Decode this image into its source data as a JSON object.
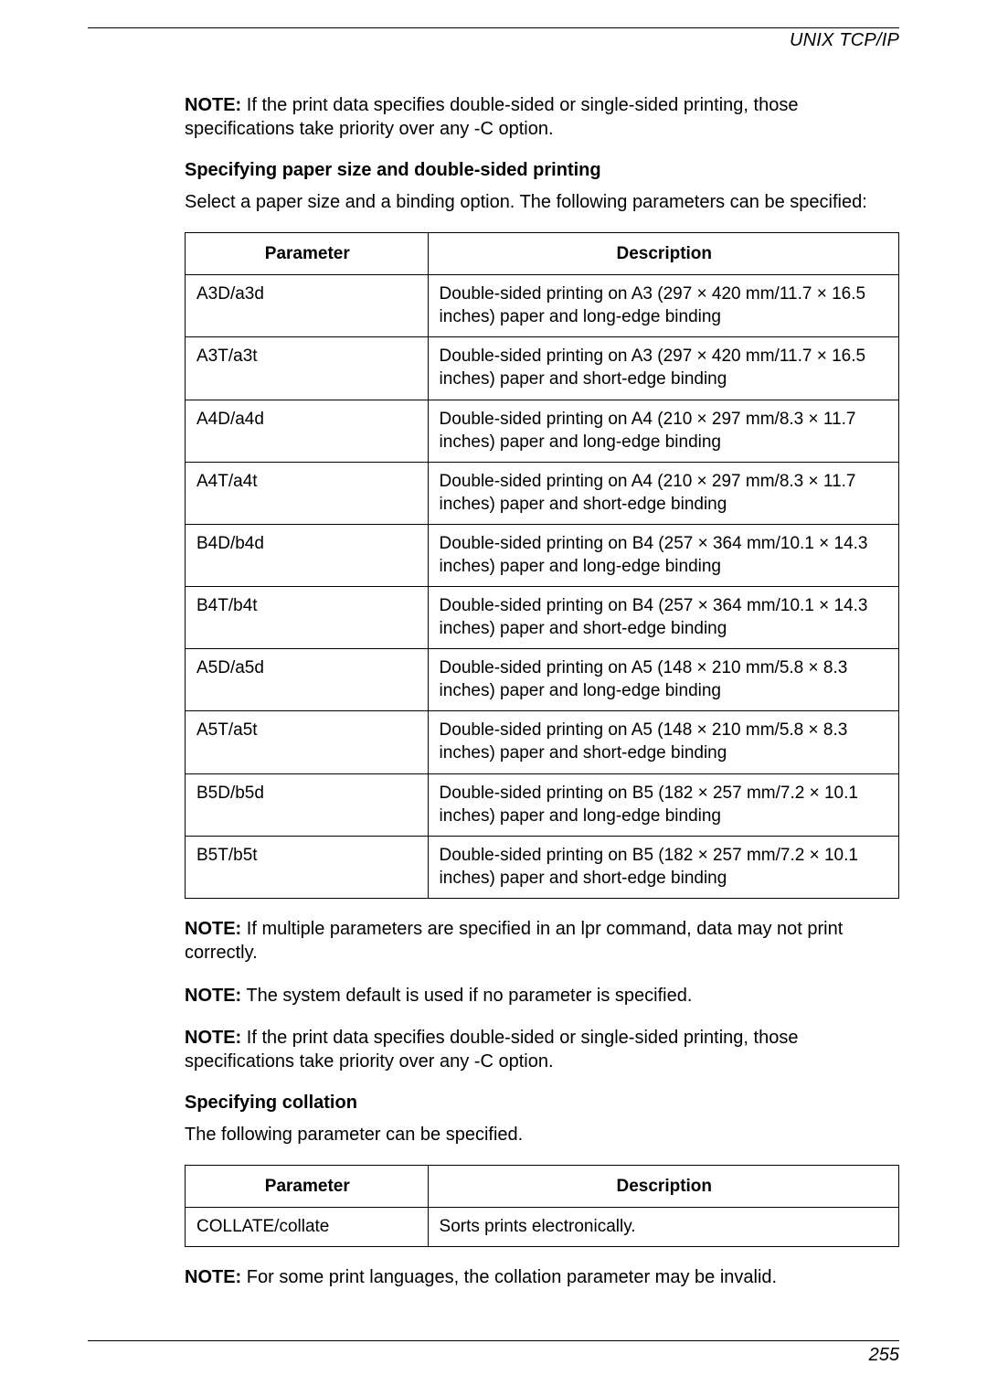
{
  "header": {
    "title": "UNIX TCP/IP"
  },
  "note1_label": "NOTE:",
  "note1_text": " If the print data specifies double-sided or single-sided printing, those specifications take priority over any -C option.",
  "section1": {
    "title": "Specifying paper size and double-sided printing",
    "intro": "Select a paper size and a binding option. The following parameters can be specified:",
    "columns": {
      "param": "Parameter",
      "desc": "Description"
    },
    "rows": [
      {
        "param": "A3D/a3d",
        "desc": "Double-sided printing on A3 (297 × 420 mm/11.7 × 16.5 inches) paper and long-edge binding"
      },
      {
        "param": "A3T/a3t",
        "desc": "Double-sided printing on A3 (297 × 420 mm/11.7 × 16.5 inches) paper and short-edge binding"
      },
      {
        "param": "A4D/a4d",
        "desc": "Double-sided printing on A4 (210 × 297 mm/8.3 × 11.7 inches) paper and long-edge binding"
      },
      {
        "param": "A4T/a4t",
        "desc": "Double-sided printing on A4 (210 × 297 mm/8.3 × 11.7 inches) paper and short-edge binding"
      },
      {
        "param": "B4D/b4d",
        "desc": "Double-sided printing on B4 (257 × 364 mm/10.1 × 14.3 inches) paper and long-edge binding"
      },
      {
        "param": "B4T/b4t",
        "desc": "Double-sided printing on B4 (257 × 364 mm/10.1 × 14.3 inches) paper and short-edge binding"
      },
      {
        "param": "A5D/a5d",
        "desc": "Double-sided printing on A5 (148 × 210 mm/5.8 × 8.3 inches) paper and long-edge binding"
      },
      {
        "param": "A5T/a5t",
        "desc": "Double-sided printing on A5 (148 × 210 mm/5.8 × 8.3 inches) paper and short-edge binding"
      },
      {
        "param": "B5D/b5d",
        "desc": "Double-sided printing on B5 (182 × 257 mm/7.2 × 10.1 inches) paper and long-edge binding"
      },
      {
        "param": "B5T/b5t",
        "desc": "Double-sided printing on B5 (182 × 257 mm/7.2 × 10.1 inches) paper and short-edge binding"
      }
    ]
  },
  "note2_label": "NOTE:",
  "note2_text": " If multiple parameters are specified in an lpr command, data may not print correctly.",
  "note3_label": "NOTE:",
  "note3_text": " The system default is used if no parameter is specified.",
  "note4_label": "NOTE:",
  "note4_text": " If the print data specifies double-sided or single-sided printing, those specifications take priority over any -C option.",
  "section2": {
    "title": "Specifying collation",
    "intro": "The following parameter can be specified.",
    "columns": {
      "param": "Parameter",
      "desc": "Description"
    },
    "rows": [
      {
        "param": "COLLATE/collate",
        "desc": "Sorts prints electronically."
      }
    ]
  },
  "note5_label": "NOTE:",
  "note5_text": " For some print languages, the collation parameter may be invalid.",
  "footer": {
    "page": "255"
  }
}
